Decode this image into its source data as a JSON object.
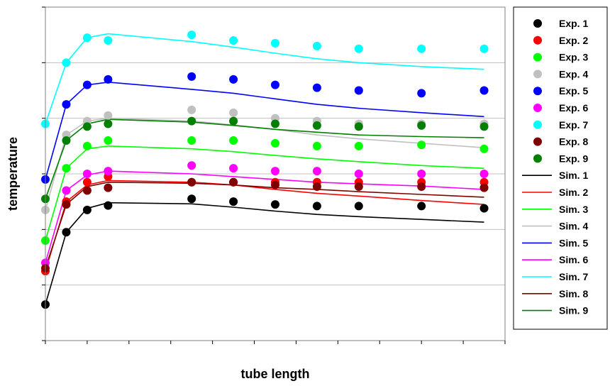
{
  "chart_data": {
    "type": "line",
    "title": "",
    "xlabel": "tube length",
    "ylabel": "temperature",
    "xlim": [
      0,
      11
    ],
    "ylim": [
      0,
      6
    ],
    "grid": {
      "horizontal": true,
      "vertical": false
    },
    "legend_position": "right",
    "x_exp": [
      0,
      0.5,
      1,
      1.5,
      3.5,
      4.5,
      5.5,
      6.5,
      7.5,
      9,
      10.5
    ],
    "x_sim": [
      0,
      0.5,
      1,
      1.5,
      3.5,
      4.5,
      5.5,
      6.5,
      7.5,
      9,
      10.5
    ],
    "series": [
      {
        "name": "Exp. 1",
        "kind": "marker",
        "color": "#000000",
        "values": [
          0.65,
          1.95,
          2.35,
          2.43,
          2.55,
          2.5,
          2.45,
          2.42,
          2.42,
          2.42,
          2.38
        ]
      },
      {
        "name": "Exp. 2",
        "kind": "marker",
        "color": "#ff0000",
        "values": [
          1.25,
          2.5,
          2.85,
          2.95,
          2.85,
          2.85,
          2.85,
          2.85,
          2.85,
          2.85,
          2.85
        ]
      },
      {
        "name": "Exp. 3",
        "kind": "marker",
        "color": "#00ff00",
        "values": [
          1.8,
          3.1,
          3.5,
          3.6,
          3.6,
          3.6,
          3.55,
          3.5,
          3.5,
          3.52,
          3.45
        ]
      },
      {
        "name": "Exp. 4",
        "kind": "marker",
        "color": "#c0c0c0",
        "values": [
          2.35,
          3.7,
          3.95,
          4.05,
          4.15,
          4.1,
          4.0,
          3.95,
          3.9,
          3.9,
          3.9
        ]
      },
      {
        "name": "Exp. 5",
        "kind": "marker",
        "color": "#0000ff",
        "values": [
          2.9,
          4.25,
          4.6,
          4.7,
          4.75,
          4.7,
          4.6,
          4.55,
          4.5,
          4.45,
          4.5
        ]
      },
      {
        "name": "Exp. 6",
        "kind": "marker",
        "color": "#ff00ff",
        "values": [
          1.4,
          2.7,
          3.0,
          3.05,
          3.15,
          3.1,
          3.05,
          3.05,
          3.0,
          3.0,
          3.0
        ]
      },
      {
        "name": "Exp. 7",
        "kind": "marker",
        "color": "#00ffff",
        "values": [
          3.9,
          5.0,
          5.45,
          5.4,
          5.5,
          5.4,
          5.35,
          5.3,
          5.25,
          5.25,
          5.25
        ]
      },
      {
        "name": "Exp. 8",
        "kind": "marker",
        "color": "#800000",
        "values": [
          1.3,
          2.45,
          2.7,
          2.75,
          2.85,
          2.85,
          2.8,
          2.77,
          2.77,
          2.77,
          2.75
        ]
      },
      {
        "name": "Exp. 9",
        "kind": "marker",
        "color": "#008000",
        "values": [
          2.55,
          3.6,
          3.85,
          3.9,
          3.95,
          3.95,
          3.9,
          3.87,
          3.85,
          3.87,
          3.85
        ]
      },
      {
        "name": "Sim. 1",
        "kind": "line",
        "color": "#000000",
        "values": [
          0.65,
          1.95,
          2.38,
          2.48,
          2.46,
          2.4,
          2.33,
          2.27,
          2.23,
          2.18,
          2.13
        ]
      },
      {
        "name": "Sim. 2",
        "kind": "line",
        "color": "#ff0000",
        "values": [
          1.25,
          2.5,
          2.8,
          2.88,
          2.85,
          2.8,
          2.72,
          2.65,
          2.6,
          2.52,
          2.45
        ]
      },
      {
        "name": "Sim. 3",
        "kind": "line",
        "color": "#00ff00",
        "values": [
          1.8,
          3.1,
          3.45,
          3.5,
          3.45,
          3.4,
          3.33,
          3.27,
          3.22,
          3.15,
          3.1
        ]
      },
      {
        "name": "Sim. 4",
        "kind": "line",
        "color": "#c0c0c0",
        "values": [
          2.35,
          3.7,
          3.95,
          4.0,
          3.95,
          3.88,
          3.8,
          3.7,
          3.63,
          3.55,
          3.47
        ]
      },
      {
        "name": "Sim. 5",
        "kind": "line",
        "color": "#0000ff",
        "values": [
          2.9,
          4.25,
          4.6,
          4.65,
          4.52,
          4.45,
          4.35,
          4.25,
          4.18,
          4.1,
          4.03
        ]
      },
      {
        "name": "Sim. 6",
        "kind": "line",
        "color": "#ff00ff",
        "values": [
          1.4,
          2.7,
          2.98,
          3.05,
          3.0,
          2.95,
          2.9,
          2.85,
          2.82,
          2.78,
          2.72
        ]
      },
      {
        "name": "Sim. 7",
        "kind": "line",
        "color": "#00ffff",
        "values": [
          3.9,
          5.0,
          5.45,
          5.52,
          5.38,
          5.28,
          5.17,
          5.07,
          5.0,
          4.93,
          4.88
        ]
      },
      {
        "name": "Sim. 8",
        "kind": "line",
        "color": "#800000",
        "values": [
          1.3,
          2.45,
          2.77,
          2.85,
          2.83,
          2.8,
          2.75,
          2.72,
          2.68,
          2.63,
          2.58
        ]
      },
      {
        "name": "Sim. 9",
        "kind": "line",
        "color": "#008000",
        "values": [
          2.55,
          3.6,
          3.9,
          3.98,
          3.93,
          3.87,
          3.8,
          3.75,
          3.7,
          3.67,
          3.65
        ]
      }
    ]
  }
}
